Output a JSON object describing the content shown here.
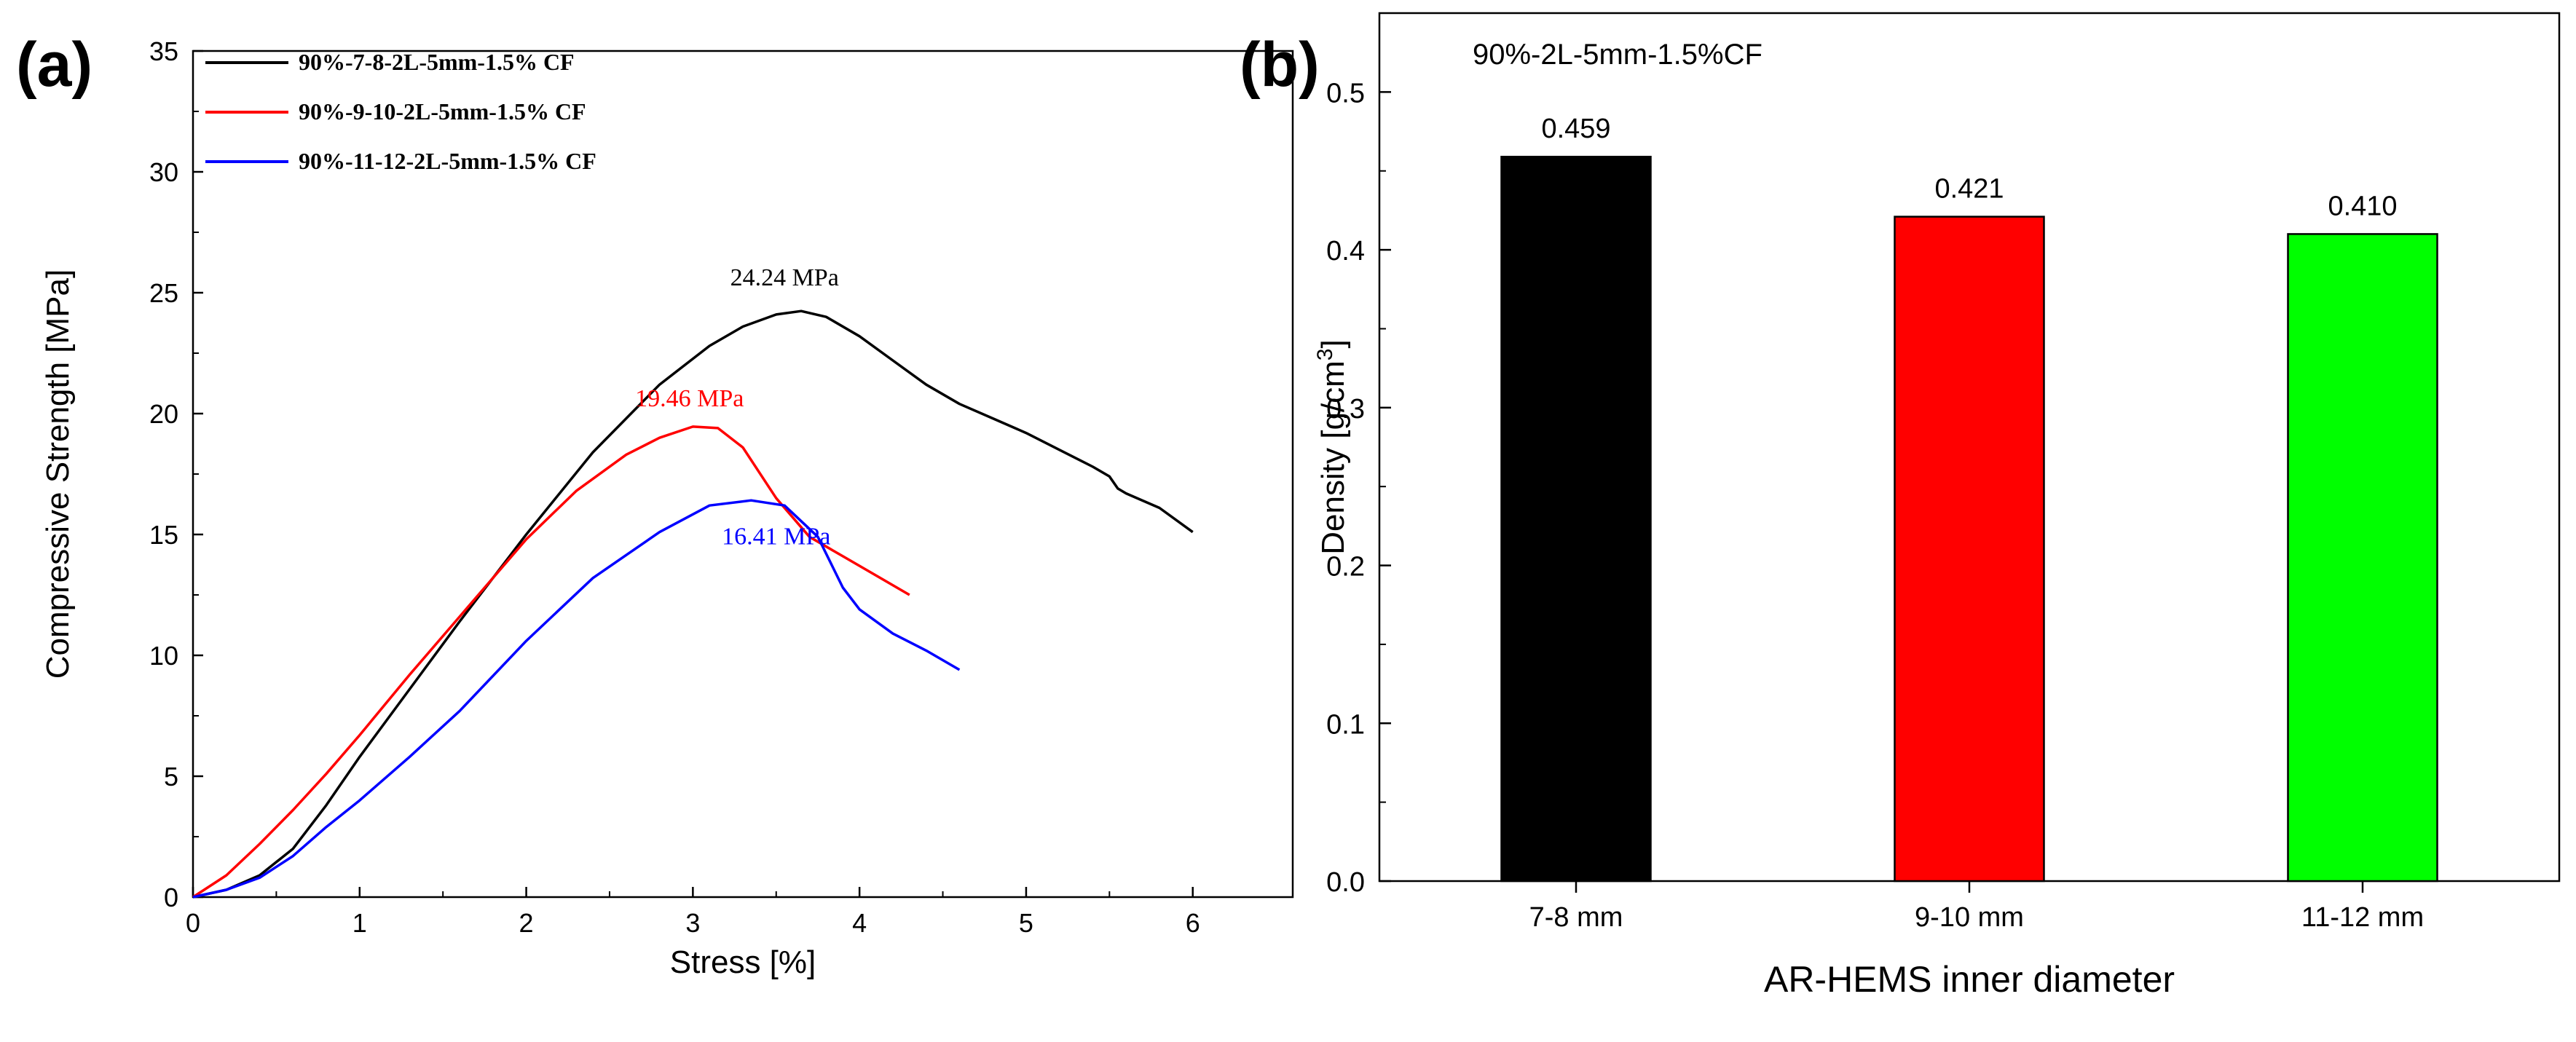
{
  "panels": {
    "a_label": "(a)",
    "b_label": "(b)"
  },
  "chart_data": [
    {
      "type": "line",
      "title": "",
      "xlabel": "Stress [%]",
      "ylabel": "Compressive Strength [MPa]",
      "xlim": [
        0,
        6.6
      ],
      "ylim": [
        0,
        35
      ],
      "xticks": [
        "0",
        "1",
        "2",
        "3",
        "4",
        "5",
        "6"
      ],
      "yticks": [
        "0",
        "5",
        "10",
        "15",
        "20",
        "25",
        "30",
        "35"
      ],
      "legend_position": "top-left",
      "series": [
        {
          "name": "90%-7-8-2L-5mm-1.5% CF",
          "color": "#000000",
          "x": [
            0,
            0.2,
            0.4,
            0.6,
            0.8,
            1.0,
            1.3,
            1.6,
            2.0,
            2.4,
            2.8,
            3.1,
            3.3,
            3.5,
            3.65,
            3.8,
            4.0,
            4.2,
            4.4,
            4.6,
            4.8,
            5.0,
            5.2,
            5.4,
            5.5,
            5.55,
            5.6,
            5.8,
            6.0
          ],
          "y": [
            0,
            0.3,
            0.9,
            2.0,
            3.8,
            5.8,
            8.6,
            11.4,
            15.0,
            18.4,
            21.2,
            22.8,
            23.6,
            24.1,
            24.24,
            24.0,
            23.2,
            22.2,
            21.2,
            20.4,
            19.8,
            19.2,
            18.5,
            17.8,
            17.4,
            16.9,
            16.7,
            16.1,
            15.1
          ]
        },
        {
          "name": "90%-9-10-2L-5mm-1.5% CF",
          "color": "#ff0000",
          "x": [
            0,
            0.2,
            0.4,
            0.6,
            0.8,
            1.0,
            1.3,
            1.6,
            2.0,
            2.3,
            2.6,
            2.8,
            3.0,
            3.15,
            3.3,
            3.5,
            3.7,
            3.9,
            4.1,
            4.3
          ],
          "y": [
            0,
            0.9,
            2.2,
            3.6,
            5.1,
            6.7,
            9.2,
            11.6,
            14.8,
            16.8,
            18.3,
            19.0,
            19.46,
            19.4,
            18.6,
            16.5,
            14.9,
            14.1,
            13.3,
            12.5
          ]
        },
        {
          "name": "90%-11-12-2L-5mm-1.5% CF",
          "color": "#0000ff",
          "x": [
            0,
            0.2,
            0.4,
            0.6,
            0.8,
            1.0,
            1.3,
            1.6,
            2.0,
            2.4,
            2.8,
            3.1,
            3.35,
            3.55,
            3.75,
            3.9,
            4.0,
            4.2,
            4.4,
            4.6
          ],
          "y": [
            0,
            0.3,
            0.8,
            1.7,
            2.9,
            4.0,
            5.8,
            7.7,
            10.6,
            13.2,
            15.1,
            16.2,
            16.41,
            16.2,
            14.9,
            12.8,
            11.9,
            10.9,
            10.2,
            9.4
          ]
        }
      ],
      "annotations": [
        {
          "text": "24.24 MPa",
          "x": 3.55,
          "y": 25.3,
          "color": "#000000"
        },
        {
          "text": "19.46 MPa",
          "x": 2.98,
          "y": 20.3,
          "color": "#ff0000"
        },
        {
          "text": "16.41 MPa",
          "x": 3.5,
          "y": 14.6,
          "color": "#0000ff"
        }
      ]
    },
    {
      "type": "bar",
      "title": "90%-2L-5mm-1.5%CF",
      "xlabel": "AR-HEMS inner diameter",
      "ylabel": "Density [g/cm3]",
      "ylim": [
        0,
        0.55
      ],
      "yticks": [
        "0.0",
        "0.1",
        "0.2",
        "0.3",
        "0.4",
        "0.5"
      ],
      "categories": [
        "7-8 mm",
        "9-10 mm",
        "11-12 mm"
      ],
      "values": [
        0.459,
        0.421,
        0.41
      ],
      "value_labels": [
        "0.459",
        "0.421",
        "0.410"
      ],
      "colors": [
        "#000000",
        "#ff0000",
        "#00ff00"
      ]
    }
  ]
}
